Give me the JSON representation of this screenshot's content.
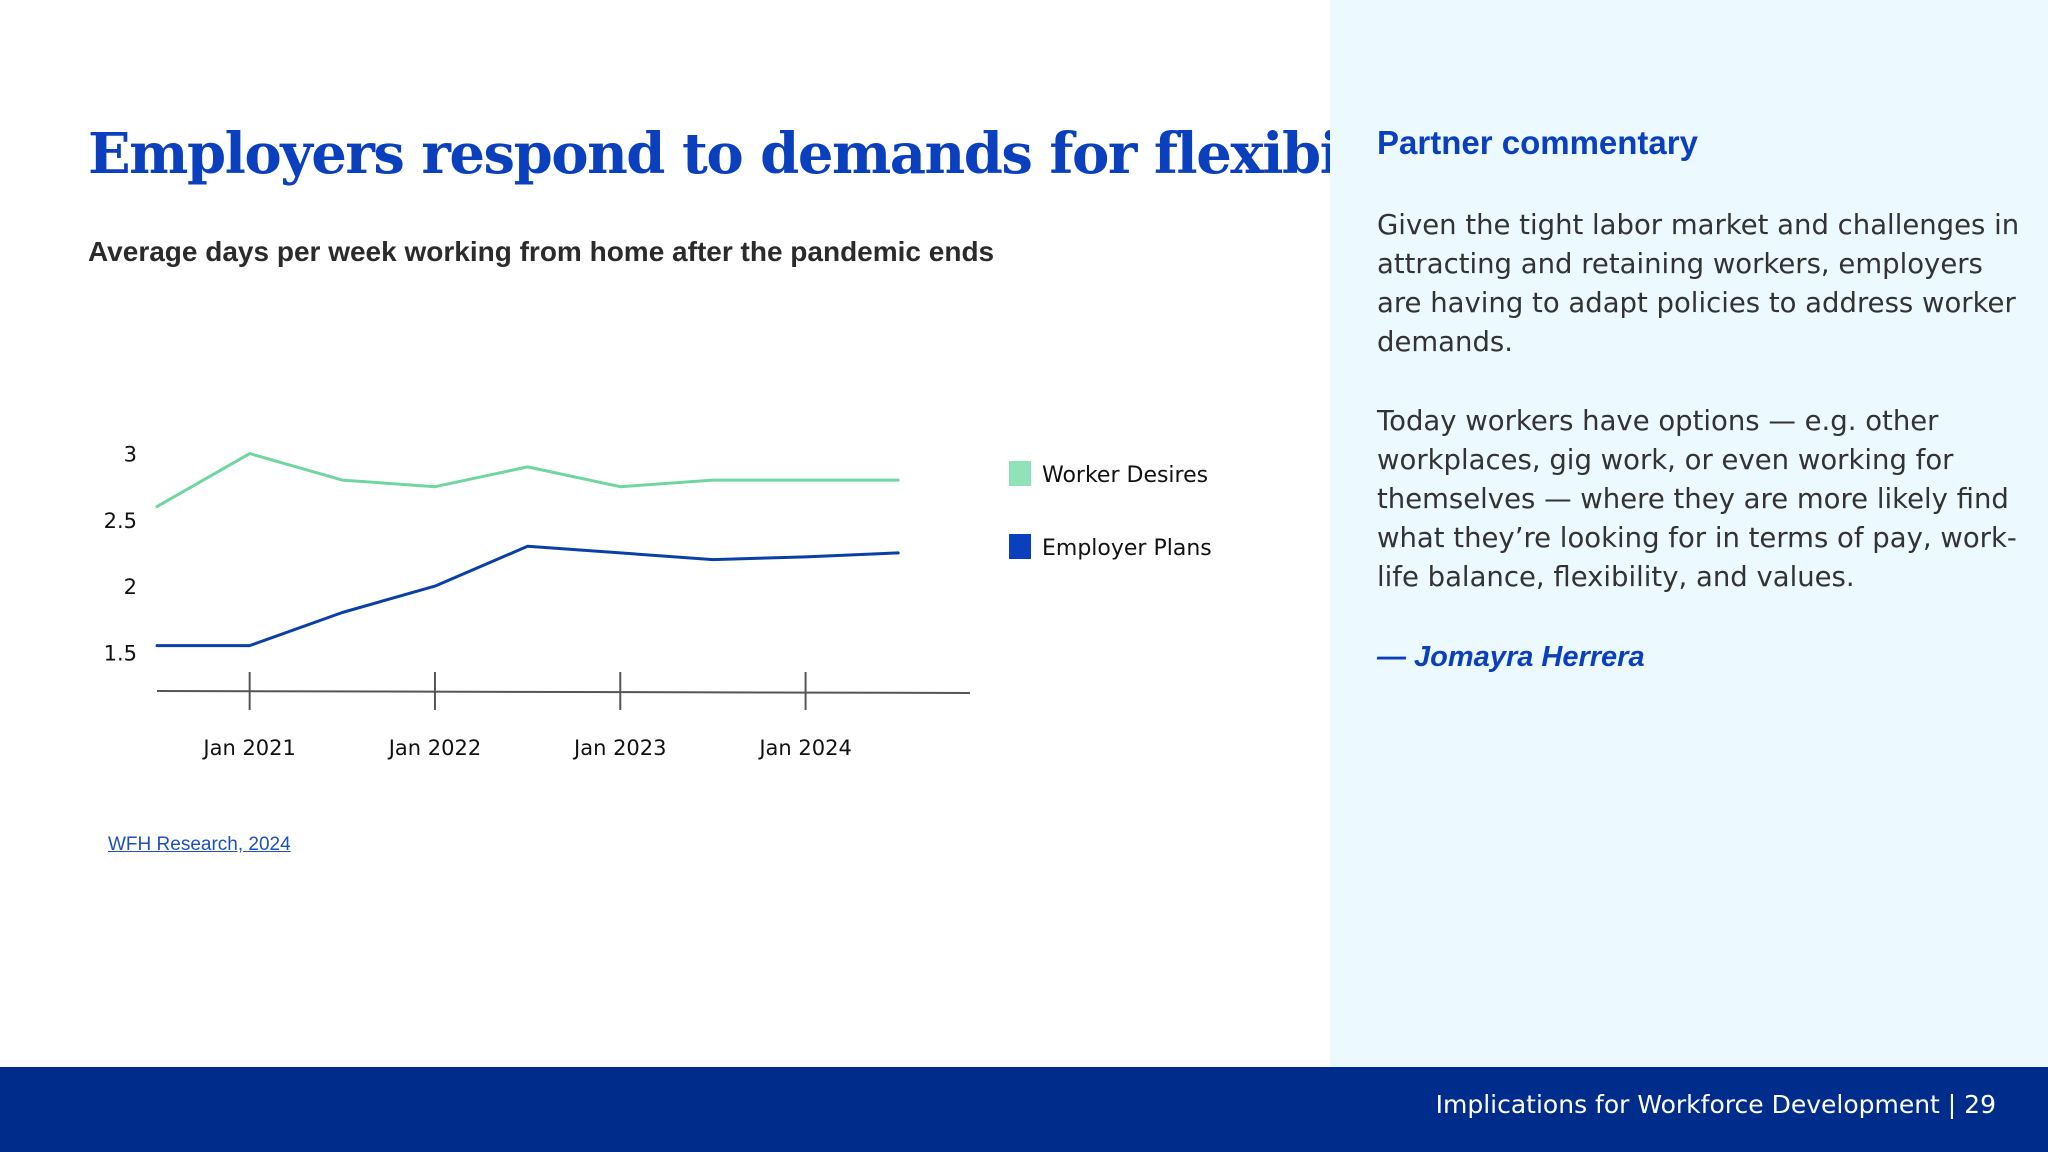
{
  "slide": {
    "title": "Employers respond to demands for flexibility",
    "source": "WFH Research, 2024"
  },
  "commentary": {
    "heading": "Partner commentary",
    "paragraphs": [
      "Given the tight labor market and challenges in attracting and retaining workers, employers are having to adapt policies to address worker demands.",
      "Today workers have options — e.g. other workplaces, gig work, or even working for themselves — where they are more likely find what they’re looking for in terms of pay, work-life balance, flexibility, and values."
    ],
    "author": "— Jomayra Herrera"
  },
  "footer": {
    "text": "Implications for Workforce Development | 29"
  },
  "colors": {
    "title_blue": "#0a3fbe",
    "worker_desires": "#6fd6a0",
    "employer_plans": "#0b3fa8",
    "panel_bg": "#ecf9fe",
    "footer_bg": "#002d8b"
  },
  "chart_data": {
    "type": "line",
    "title": "Average days per week working from home after the pandemic ends",
    "xlabel": "",
    "ylabel": "",
    "ylim": [
      1.2,
      3.05
    ],
    "yticks": [
      {
        "value": 3,
        "label": "3"
      },
      {
        "value": 2.5,
        "label": "2.5"
      },
      {
        "value": 2,
        "label": "2"
      },
      {
        "value": 1.5,
        "label": "1.5"
      }
    ],
    "xlim": [
      "2020-07",
      "2024-11"
    ],
    "xticks": [
      {
        "value": "2021-01",
        "label": "Jan 2021"
      },
      {
        "value": "2022-01",
        "label": "Jan 2022"
      },
      {
        "value": "2023-01",
        "label": "Jan 2023"
      },
      {
        "value": "2024-01",
        "label": "Jan 2024"
      }
    ],
    "grid": false,
    "legend": "right",
    "series": [
      {
        "name": "Worker Desires",
        "color": "#6fd6a0",
        "points": [
          {
            "x": "2020-07",
            "y": 2.6
          },
          {
            "x": "2021-01",
            "y": 3.0
          },
          {
            "x": "2021-07",
            "y": 2.8
          },
          {
            "x": "2022-01",
            "y": 2.75
          },
          {
            "x": "2022-07",
            "y": 2.9
          },
          {
            "x": "2023-01",
            "y": 2.75
          },
          {
            "x": "2023-07",
            "y": 2.8
          },
          {
            "x": "2024-01",
            "y": 2.8
          },
          {
            "x": "2024-07",
            "y": 2.8
          }
        ]
      },
      {
        "name": "Employer Plans",
        "color": "#0b3fa8",
        "points": [
          {
            "x": "2020-07",
            "y": 1.55
          },
          {
            "x": "2021-01",
            "y": 1.55
          },
          {
            "x": "2021-07",
            "y": 1.8
          },
          {
            "x": "2022-01",
            "y": 2.0
          },
          {
            "x": "2022-07",
            "y": 2.3
          },
          {
            "x": "2023-01",
            "y": 2.25
          },
          {
            "x": "2023-07",
            "y": 2.2
          },
          {
            "x": "2024-01",
            "y": 2.22
          },
          {
            "x": "2024-07",
            "y": 2.25
          }
        ]
      }
    ]
  }
}
